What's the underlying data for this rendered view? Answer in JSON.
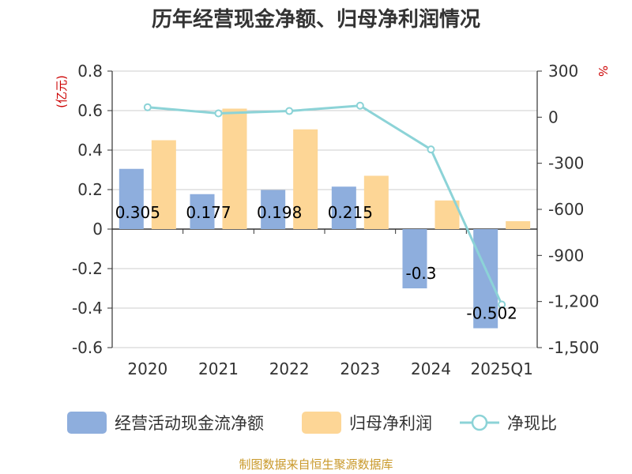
{
  "chart_data": {
    "type": "bar",
    "title": "历年经营现金净额、归母净利润情况",
    "categories": [
      "2020",
      "2021",
      "2022",
      "2023",
      "2024",
      "2025Q1"
    ],
    "series": [
      {
        "name": "经营活动现金流净额",
        "axis": "left",
        "type": "bar",
        "color": "#8eaedd",
        "values": [
          0.305,
          0.177,
          0.198,
          0.215,
          -0.3,
          -0.502
        ],
        "labels": [
          "0.305",
          "0.177",
          "0.198",
          "0.215",
          "-0.3",
          "-0.502"
        ]
      },
      {
        "name": "归母净利润",
        "axis": "left",
        "type": "bar",
        "color": "#fdd696",
        "values": [
          0.45,
          0.61,
          0.505,
          0.27,
          0.145,
          0.04
        ]
      },
      {
        "name": "净现比",
        "axis": "right",
        "type": "line",
        "color": "#8cd3d7",
        "values": [
          65,
          25,
          40,
          75,
          -210,
          -1220
        ]
      }
    ],
    "left_axis": {
      "unit": "(亿元)",
      "ylim": [
        -0.6,
        0.8
      ],
      "ticks": [
        "0.8",
        "0.6",
        "0.4",
        "0.2",
        "0",
        "-0.2",
        "-0.4",
        "-0.6"
      ],
      "tick_values": [
        0.8,
        0.6,
        0.4,
        0.2,
        0,
        -0.2,
        -0.4,
        -0.6
      ]
    },
    "right_axis": {
      "unit": "%",
      "ylim": [
        -1500,
        300
      ],
      "ticks": [
        "300",
        "0",
        "-300",
        "-600",
        "-900",
        "-1,200",
        "-1,500"
      ],
      "tick_values": [
        300,
        0,
        -300,
        -600,
        -900,
        -1200,
        -1500
      ]
    },
    "grid": true,
    "legend_position": "bottom",
    "source": "制图数据来自恒生聚源数据库"
  }
}
